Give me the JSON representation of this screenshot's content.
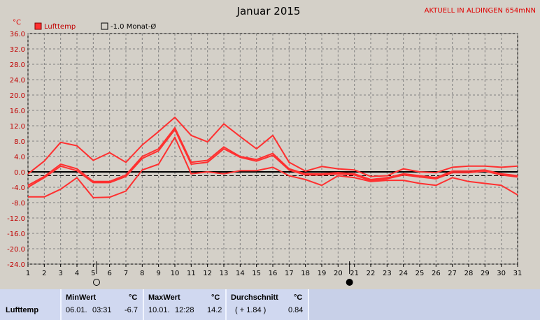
{
  "chart_data": {
    "type": "line",
    "title": "Januar 2015",
    "station": "AKTUELL IN ALDINGEN 654mNN",
    "ylabel": "°C",
    "ylim": [
      -24,
      36
    ],
    "yticks": [
      "36.0",
      "32.0",
      "28.0",
      "24.0",
      "20.0",
      "16.0",
      "12.0",
      "8.0",
      "4.0",
      "0.0",
      "-4.0",
      "-8.0",
      "-12.0",
      "-16.0",
      "-20.0",
      "-24.0"
    ],
    "x": [
      1,
      2,
      3,
      4,
      5,
      6,
      7,
      8,
      9,
      10,
      11,
      12,
      13,
      14,
      15,
      16,
      17,
      18,
      19,
      20,
      21,
      22,
      23,
      24,
      25,
      26,
      27,
      28,
      29,
      30,
      31
    ],
    "legend": [
      "Lufttemp",
      "-1.0 Monat-Ø"
    ],
    "reference_lines": {
      "zero": 0.0,
      "monthly_mean": -1.0
    },
    "series": [
      {
        "name": "",
        "role": "max",
        "values": [
          -0.5,
          2.8,
          7.7,
          6.8,
          3.0,
          5.0,
          2.5,
          7.0,
          10.5,
          14.2,
          9.5,
          7.8,
          12.5,
          9.2,
          6.0,
          9.5,
          2.5,
          0.2,
          1.4,
          0.8,
          0.5,
          -1.2,
          -1.0,
          0.8,
          0.0,
          -0.2,
          1.2,
          1.5,
          1.5,
          1.2,
          1.5
        ]
      },
      {
        "name": "",
        "role": "mean_upper",
        "values": [
          -3.5,
          -1.2,
          2.0,
          0.8,
          -2.5,
          -2.5,
          -0.8,
          4.0,
          6.0,
          11.5,
          2.5,
          3.0,
          6.5,
          4.0,
          3.2,
          4.8,
          0.8,
          -0.5,
          -0.5,
          -0.2,
          -0.5,
          -2.0,
          -1.5,
          -0.5,
          -1.0,
          -1.5,
          0.2,
          0.2,
          0.5,
          -0.5,
          -1.0
        ]
      },
      {
        "name": "",
        "role": "mean_lower",
        "values": [
          -4.0,
          -1.5,
          1.5,
          0.3,
          -2.8,
          -2.8,
          -1.2,
          3.5,
          5.5,
          11.0,
          2.0,
          2.5,
          6.0,
          3.8,
          2.8,
          4.3,
          0.5,
          -0.8,
          -0.8,
          -0.5,
          -0.8,
          -2.3,
          -1.8,
          -0.8,
          -1.3,
          -1.8,
          -0.2,
          -0.2,
          0.2,
          -0.8,
          -1.3
        ]
      },
      {
        "name": "",
        "role": "min",
        "values": [
          -6.5,
          -6.5,
          -4.5,
          -1.5,
          -6.7,
          -6.6,
          -5.0,
          0.5,
          2.0,
          9.0,
          -0.5,
          0.0,
          -0.5,
          0.3,
          0.3,
          1.2,
          -1.0,
          -2.0,
          -3.5,
          -1.0,
          -1.5,
          -2.5,
          -2.2,
          -2.2,
          -3.0,
          -3.5,
          -1.5,
          -2.5,
          -3.0,
          -3.5,
          -6.0
        ]
      }
    ],
    "moon_markers": [
      {
        "day": 5.2,
        "phase": "full"
      },
      {
        "day": 20.7,
        "phase": "new"
      }
    ],
    "grid": true
  },
  "stats": {
    "row_label": "Lufttemp",
    "min": {
      "header": "MinWert",
      "unit": "°C",
      "date": "06.01.",
      "time": "03:31",
      "value": "-6.7"
    },
    "max": {
      "header": "MaxWert",
      "unit": "°C",
      "date": "10.01.",
      "time": "12:28",
      "value": "14.2"
    },
    "avg": {
      "header": "Durchschnitt",
      "unit": "°C",
      "delta": "( + 1.84 )",
      "value": "0.84"
    }
  },
  "colors": {
    "series": "#ff3030",
    "grid": "#808080",
    "plot_bg": "#d4d0c8",
    "station": "#e00000",
    "axis_label": "#c00000"
  }
}
